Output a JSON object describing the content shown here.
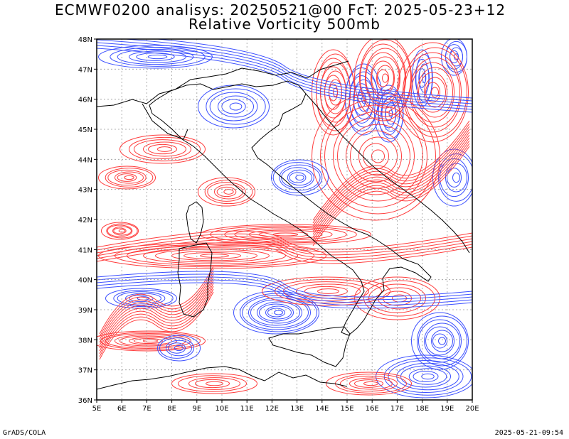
{
  "header": {
    "title_line1": "ECMWF0200 analisys: 20250521@00 FcT: 2025-05-23+12",
    "title_line2": "Relative Vorticity 500mb"
  },
  "map": {
    "lon_range": [
      5,
      20
    ],
    "lat_range": [
      36,
      48
    ],
    "lon_ticks": [
      "5E",
      "6E",
      "7E",
      "8E",
      "9E",
      "10E",
      "11E",
      "12E",
      "13E",
      "14E",
      "15E",
      "16E",
      "17E",
      "18E",
      "19E",
      "20E"
    ],
    "lat_ticks": [
      "36N",
      "37N",
      "38N",
      "39N",
      "40N",
      "41N",
      "42N",
      "43N",
      "44N",
      "45N",
      "46N",
      "47N",
      "48N"
    ],
    "positive_color": "#ff3c3c",
    "negative_color": "#3c50ff",
    "grid_color": "#999999",
    "coast_color": "#000000",
    "icons": [
      "contour-field",
      "coastline",
      "graticule"
    ]
  },
  "footer": {
    "left": "GrADS/COLA",
    "right": "2025-05-21-09:54"
  }
}
